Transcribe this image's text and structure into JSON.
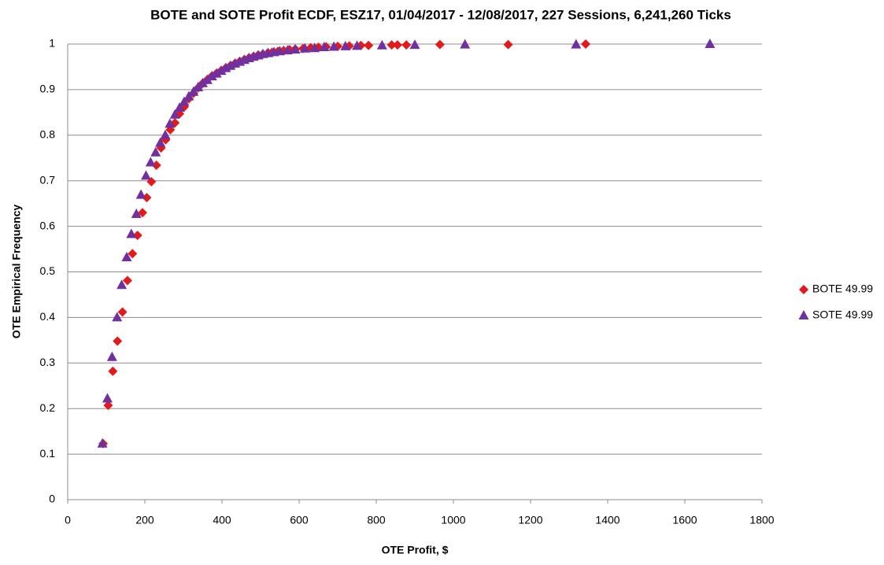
{
  "chart_data": {
    "type": "scatter",
    "title": "BOTE and SOTE Profit ECDF, ESZ17, 01/04/2017 - 12/08/2017, 227 Sessions, 6,241,260 Ticks",
    "x_label": "OTE Profit, $",
    "y_label": "OTE Empirical Frequency",
    "xlim": [
      0,
      1800
    ],
    "xticks": [
      0,
      200,
      400,
      600,
      800,
      1000,
      1200,
      1400,
      1600,
      1800
    ],
    "ylim": [
      0,
      1
    ],
    "yticks": [
      0,
      0.1,
      0.2,
      0.3,
      0.4,
      0.5,
      0.6,
      0.7,
      0.8,
      0.9,
      1
    ],
    "grid": true,
    "legend": "right",
    "series": [
      {
        "name": "BOTE 49.99",
        "color": "#e31a1c",
        "marker": "diamond",
        "x": [
          92,
          105,
          117,
          129,
          142,
          155,
          168,
          181,
          194,
          205,
          217,
          230,
          242,
          254,
          266,
          278,
          290,
          302,
          314,
          326,
          338,
          350,
          362,
          374,
          386,
          398,
          410,
          422,
          434,
          446,
          458,
          470,
          482,
          494,
          506,
          518,
          530,
          545,
          560,
          575,
          590,
          610,
          630,
          650,
          670,
          700,
          730,
          760,
          780,
          840,
          855,
          878,
          965,
          1142,
          1343
        ],
        "values": [
          0.123,
          0.207,
          0.282,
          0.348,
          0.412,
          0.481,
          0.54,
          0.58,
          0.63,
          0.663,
          0.698,
          0.734,
          0.772,
          0.79,
          0.812,
          0.827,
          0.847,
          0.862,
          0.88,
          0.892,
          0.904,
          0.914,
          0.922,
          0.93,
          0.936,
          0.942,
          0.948,
          0.953,
          0.958,
          0.962,
          0.966,
          0.97,
          0.973,
          0.976,
          0.978,
          0.98,
          0.982,
          0.984,
          0.986,
          0.988,
          0.989,
          0.99,
          0.992,
          0.993,
          0.994,
          0.995,
          0.996,
          0.997,
          0.997,
          0.998,
          0.998,
          0.998,
          0.999,
          0.999,
          1
        ]
      },
      {
        "name": "SOTE 49.99",
        "color": "#7030a0",
        "marker": "triangle",
        "x": [
          90,
          103,
          115,
          128,
          140,
          153,
          165,
          178,
          190,
          203,
          215,
          228,
          240,
          253,
          265,
          278,
          290,
          302,
          314,
          326,
          338,
          350,
          362,
          374,
          386,
          398,
          410,
          422,
          434,
          446,
          458,
          470,
          482,
          494,
          506,
          520,
          535,
          550,
          570,
          590,
          615,
          640,
          665,
          690,
          720,
          750,
          815,
          900,
          1030,
          1318,
          1665
        ],
        "values": [
          0.123,
          0.222,
          0.313,
          0.4,
          0.471,
          0.532,
          0.583,
          0.627,
          0.669,
          0.711,
          0.74,
          0.762,
          0.783,
          0.8,
          0.825,
          0.845,
          0.86,
          0.873,
          0.885,
          0.895,
          0.905,
          0.914,
          0.921,
          0.929,
          0.935,
          0.941,
          0.947,
          0.952,
          0.957,
          0.961,
          0.965,
          0.969,
          0.972,
          0.975,
          0.978,
          0.98,
          0.982,
          0.984,
          0.986,
          0.988,
          0.99,
          0.991,
          0.993,
          0.994,
          0.995,
          0.996,
          0.997,
          0.998,
          0.999,
          0.999,
          1
        ]
      }
    ]
  }
}
